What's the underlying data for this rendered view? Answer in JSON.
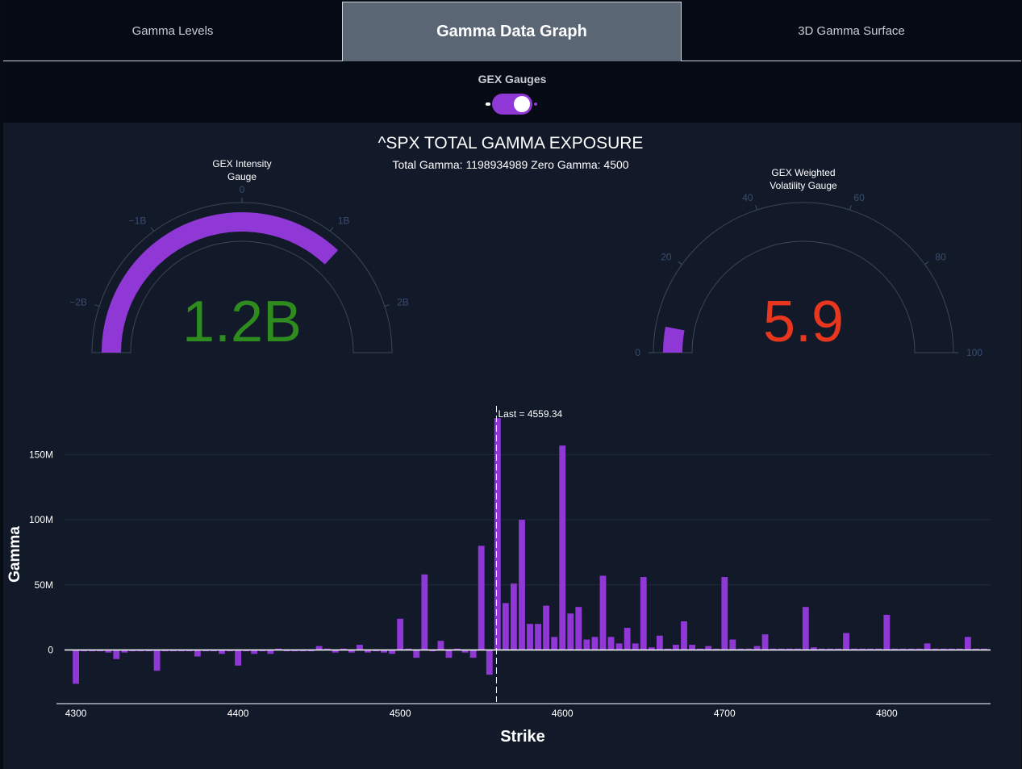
{
  "tabs": [
    {
      "label": "Gamma Levels",
      "active": false
    },
    {
      "label": "Gamma Data Graph",
      "active": true
    },
    {
      "label": "3D Gamma Surface",
      "active": false
    }
  ],
  "toggle": {
    "label": "GEX Gauges",
    "on": true
  },
  "colors": {
    "bar": "#9038d6",
    "intensity_value": "#2e8b1e",
    "vol_value": "#e8361f",
    "gauge_ticks": "#3a4d6e"
  },
  "header": {
    "title": "^SPX TOTAL GAMMA EXPOSURE",
    "subtitle": "Total Gamma: 1198934989  Zero Gamma: 4500"
  },
  "gauges": [
    {
      "title_lines": [
        "GEX Intensity",
        "Gauge"
      ],
      "value_text": "1.2B",
      "value": 1.2,
      "range": [
        -2.5,
        2.5
      ],
      "ticks": [
        {
          "v": -2,
          "label": "−2B"
        },
        {
          "v": -1,
          "label": "−1B"
        },
        {
          "v": 0,
          "label": "0"
        },
        {
          "v": 1,
          "label": "1B"
        },
        {
          "v": 2,
          "label": "2B"
        }
      ]
    },
    {
      "title_lines": [
        "GEX Weighted",
        "Volatility Gauge"
      ],
      "value_text": "5.9",
      "value": 5.9,
      "range": [
        0,
        100
      ],
      "ticks": [
        {
          "v": 0,
          "label": "0"
        },
        {
          "v": 20,
          "label": "20"
        },
        {
          "v": 40,
          "label": "40"
        },
        {
          "v": 60,
          "label": "60"
        },
        {
          "v": 80,
          "label": "80"
        },
        {
          "v": 100,
          "label": "100"
        }
      ]
    }
  ],
  "chart_data": {
    "type": "bar",
    "xlabel": "Strike",
    "ylabel": "Gamma",
    "xlim": [
      4293,
      4864
    ],
    "ylim": [
      -40,
      185
    ],
    "value_unit": "M",
    "xticks": [
      4300,
      4400,
      4500,
      4600,
      4700,
      4800
    ],
    "yticks": [
      {
        "v": 0,
        "label": "0"
      },
      {
        "v": 50,
        "label": "50M"
      },
      {
        "v": 100,
        "label": "100M"
      },
      {
        "v": 150,
        "label": "150M"
      }
    ],
    "grid": true,
    "annotation": {
      "x": 4559.34,
      "text": "Last = 4559.34"
    },
    "x": [
      4300,
      4305,
      4310,
      4315,
      4320,
      4325,
      4330,
      4335,
      4340,
      4345,
      4350,
      4355,
      4360,
      4365,
      4370,
      4375,
      4380,
      4385,
      4390,
      4395,
      4400,
      4405,
      4410,
      4415,
      4420,
      4425,
      4430,
      4435,
      4440,
      4445,
      4450,
      4455,
      4460,
      4465,
      4470,
      4475,
      4480,
      4485,
      4490,
      4495,
      4500,
      4505,
      4510,
      4515,
      4520,
      4525,
      4530,
      4535,
      4540,
      4545,
      4550,
      4555,
      4560,
      4565,
      4570,
      4575,
      4580,
      4585,
      4590,
      4595,
      4600,
      4605,
      4610,
      4615,
      4620,
      4625,
      4630,
      4635,
      4640,
      4645,
      4650,
      4655,
      4660,
      4665,
      4670,
      4675,
      4680,
      4685,
      4690,
      4695,
      4700,
      4705,
      4710,
      4715,
      4720,
      4725,
      4730,
      4735,
      4740,
      4745,
      4750,
      4755,
      4760,
      4765,
      4770,
      4775,
      4780,
      4785,
      4790,
      4795,
      4800,
      4805,
      4810,
      4815,
      4820,
      4825,
      4830,
      4835,
      4840,
      4845,
      4850,
      4855,
      4860
    ],
    "values": [
      -26,
      -1,
      -1,
      -1,
      -2,
      -7,
      -2,
      -1,
      -1,
      -1,
      -16,
      -1,
      -1,
      -1,
      -1,
      -5,
      -1,
      -1,
      -3,
      -1,
      -12,
      -1,
      -3,
      -1,
      -3,
      1,
      -1,
      -1,
      -1,
      -1,
      3,
      1,
      -2,
      1,
      -2,
      4,
      -2,
      -1,
      -2,
      -3,
      24,
      1,
      -6,
      58,
      -1,
      7,
      -6,
      1,
      -2,
      -6,
      80,
      -19,
      178,
      36,
      51,
      100,
      20,
      20,
      34,
      10,
      157,
      28,
      33,
      8,
      10,
      57,
      10,
      5,
      17,
      5,
      56,
      2,
      11,
      1,
      4,
      22,
      4,
      1,
      3,
      1,
      56,
      8,
      1,
      1,
      3,
      12,
      1,
      1,
      1,
      1,
      33,
      2,
      1,
      1,
      1,
      13,
      1,
      1,
      1,
      1,
      27,
      1,
      1,
      1,
      1,
      5,
      1,
      1,
      1,
      1,
      10,
      1,
      1
    ]
  }
}
